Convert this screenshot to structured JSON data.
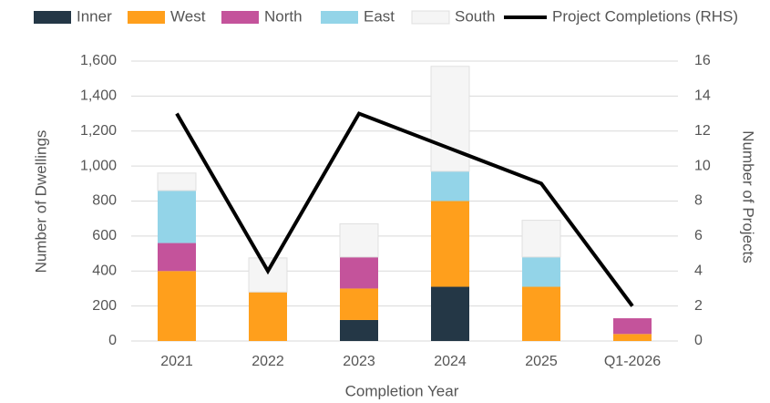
{
  "chart_data": {
    "type": "bar",
    "stacked": true,
    "x_label": "Completion Year",
    "y_label": "Number of Dwellings",
    "y2_label": "Number of Projects",
    "categories": [
      "2021",
      "2022",
      "2023",
      "2024",
      "2025",
      "Q1-2026"
    ],
    "series": [
      {
        "name": "Inner",
        "color": "#243746",
        "values": [
          0,
          0,
          120,
          310,
          0,
          0
        ]
      },
      {
        "name": "West",
        "color": "#ff9f1c",
        "values": [
          400,
          280,
          180,
          490,
          310,
          40
        ]
      },
      {
        "name": "North",
        "color": "#c4539b",
        "values": [
          160,
          0,
          180,
          0,
          0,
          90
        ]
      },
      {
        "name": "East",
        "color": "#93d4e8",
        "values": [
          300,
          0,
          0,
          170,
          170,
          0
        ]
      },
      {
        "name": "South",
        "color": "#f5f5f5",
        "values": [
          100,
          195,
          190,
          600,
          210,
          0
        ]
      },
      {
        "name": "Project Completions (RHS)",
        "color": "#000000",
        "type": "line",
        "axis": "y2",
        "values": [
          13,
          4,
          13,
          11,
          9,
          2
        ]
      }
    ],
    "ylim": [
      0,
      1600
    ],
    "yticks": [
      0,
      200,
      400,
      600,
      800,
      {
        "value": 1000,
        "label": "1,000"
      },
      {
        "value": 1200,
        "label": "1,200"
      },
      {
        "value": 1400,
        "label": "1,400"
      },
      {
        "value": 1600,
        "label": "1,600"
      }
    ],
    "y2lim": [
      0,
      16
    ],
    "y2ticks": [
      0,
      2,
      4,
      6,
      8,
      10,
      12,
      14,
      16
    ],
    "grid": true,
    "legend": "top"
  }
}
